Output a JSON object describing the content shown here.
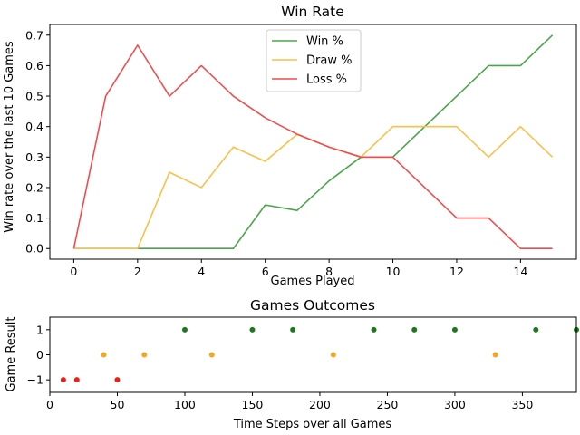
{
  "chart_data": [
    {
      "type": "line",
      "title": "Win Rate",
      "xlabel": "Games Played",
      "ylabel": "Win rate over the last 10 Games",
      "xlim": [
        -0.75,
        15.75
      ],
      "ylim": [
        -0.035,
        0.735
      ],
      "x_ticks": [
        0,
        2,
        4,
        6,
        8,
        10,
        12,
        14
      ],
      "y_ticks": [
        0.0,
        0.1,
        0.2,
        0.3,
        0.4,
        0.5,
        0.6,
        0.7
      ],
      "x": [
        0,
        1,
        2,
        3,
        4,
        5,
        6,
        7,
        8,
        9,
        10,
        11,
        12,
        13,
        14,
        15
      ],
      "series": [
        {
          "name": "Win %",
          "color": "#4aa54a",
          "values": [
            0,
            0,
            0,
            0,
            0,
            0,
            0.143,
            0.125,
            0.222,
            0.3,
            0.3,
            0.4,
            0.5,
            0.6,
            0.6,
            0.7
          ]
        },
        {
          "name": "Draw %",
          "color": "#f9c04a",
          "values": [
            0,
            0,
            0,
            0.25,
            0.2,
            0.333,
            0.286,
            0.375,
            0.333,
            0.3,
            0.4,
            0.4,
            0.4,
            0.3,
            0.4,
            0.3
          ]
        },
        {
          "name": "Loss %",
          "color": "#ef4d4d",
          "values": [
            0,
            0.5,
            0.667,
            0.5,
            0.6,
            0.5,
            0.429,
            0.375,
            0.333,
            0.3,
            0.3,
            0.2,
            0.1,
            0.1,
            0,
            0
          ]
        }
      ],
      "legend_position": "top-center"
    },
    {
      "type": "scatter",
      "title": "Games Outcomes",
      "xlabel": "Time Steps over all Games",
      "ylabel": "Game Result",
      "xlim": [
        0,
        390
      ],
      "ylim": [
        -1.5,
        1.5
      ],
      "x_ticks": [
        0,
        50,
        100,
        150,
        200,
        250,
        300,
        350
      ],
      "y_ticks": [
        -1,
        0,
        1
      ],
      "points": [
        {
          "x": 10,
          "y": -1,
          "color": "#e8221b"
        },
        {
          "x": 20,
          "y": -1,
          "color": "#e8221b"
        },
        {
          "x": 40,
          "y": 0,
          "color": "#f5a623"
        },
        {
          "x": 50,
          "y": -1,
          "color": "#e8221b"
        },
        {
          "x": 70,
          "y": 0,
          "color": "#f5a623"
        },
        {
          "x": 100,
          "y": 1,
          "color": "#1a7a1a"
        },
        {
          "x": 120,
          "y": 0,
          "color": "#f5a623"
        },
        {
          "x": 150,
          "y": 1,
          "color": "#1a7a1a"
        },
        {
          "x": 180,
          "y": 1,
          "color": "#1a7a1a"
        },
        {
          "x": 210,
          "y": 0,
          "color": "#f5a623"
        },
        {
          "x": 240,
          "y": 1,
          "color": "#1a7a1a"
        },
        {
          "x": 270,
          "y": 1,
          "color": "#1a7a1a"
        },
        {
          "x": 300,
          "y": 1,
          "color": "#1a7a1a"
        },
        {
          "x": 330,
          "y": 0,
          "color": "#f5a623"
        },
        {
          "x": 360,
          "y": 1,
          "color": "#1a7a1a"
        },
        {
          "x": 390,
          "y": 1,
          "color": "#1a7a1a"
        }
      ]
    }
  ]
}
